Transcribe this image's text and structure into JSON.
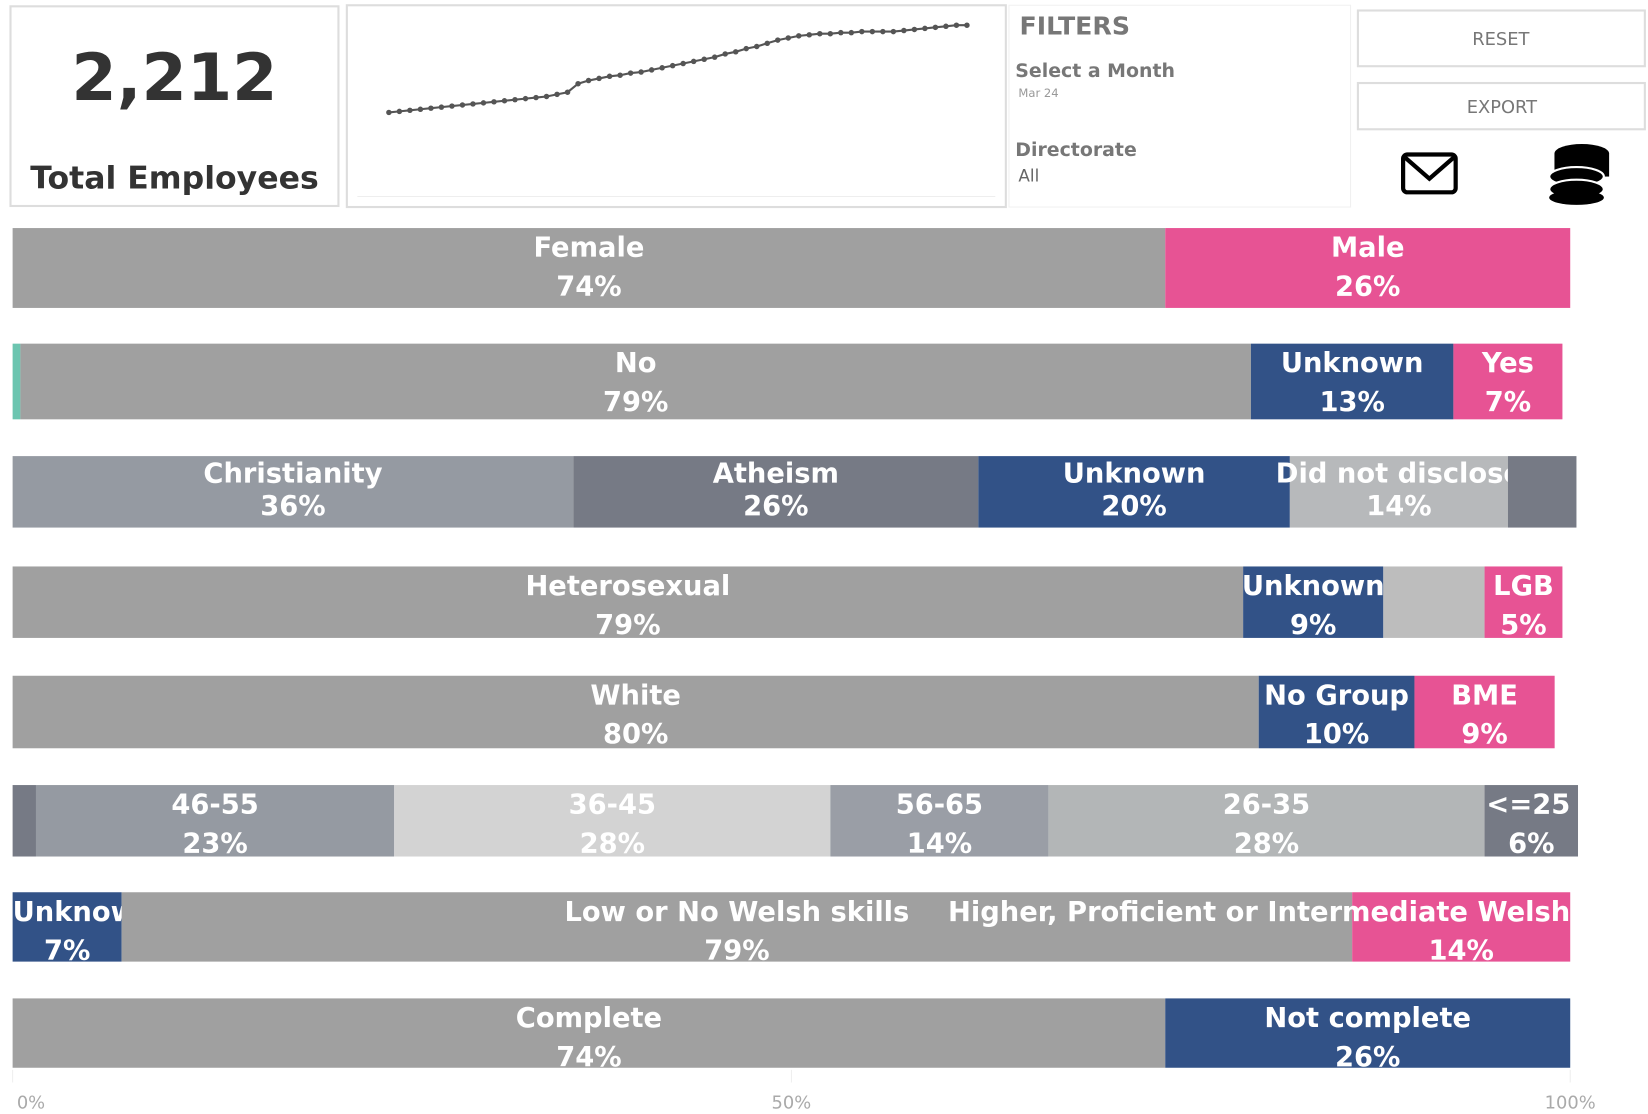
{
  "kpi": {
    "value": "2,212",
    "label": "Total Employees"
  },
  "filters": {
    "title": "FILTERS",
    "month_label": "Select a Month",
    "month_value": "Mar 24",
    "directorate_label": "Directorate",
    "directorate_value": "All"
  },
  "buttons": {
    "reset": "RESET",
    "export": "EXPORT"
  },
  "chart_data": [
    {
      "type": "line",
      "color": "#555555",
      "values": [
        3,
        4,
        5,
        6,
        7,
        8,
        9,
        10,
        11,
        12,
        13,
        14,
        15,
        16,
        17,
        18,
        20,
        22,
        30,
        33,
        35,
        37,
        38,
        40,
        41,
        43,
        45,
        47,
        49,
        51,
        53,
        55,
        58,
        60,
        63,
        65,
        68,
        71,
        73,
        75,
        76,
        77,
        77,
        78,
        78,
        79,
        79,
        79,
        79,
        80,
        81,
        82,
        83,
        84,
        85,
        85
      ]
    },
    {
      "type": "stacked_bar",
      "xlim": [
        0,
        100
      ],
      "xticks": [
        {
          "value": 0,
          "label": "0%"
        },
        {
          "value": 50,
          "label": "50%"
        },
        {
          "value": 100,
          "label": "100%"
        }
      ],
      "rows": [
        {
          "names": [
            "Female",
            "Male"
          ],
          "values": [
            74,
            26
          ],
          "value_labels": [
            "74%",
            "26%"
          ],
          "colors": [
            "#a0a0a0",
            "#e75394"
          ]
        },
        {
          "names": [
            null,
            "No",
            "Unknown",
            "Yes"
          ],
          "values": [
            0.5,
            79,
            13,
            7
          ],
          "value_labels": [
            null,
            "79%",
            "13%",
            "7%"
          ],
          "colors": [
            "#6cc5b0",
            "#a0a0a0",
            "#325287",
            "#e75394"
          ]
        },
        {
          "names": [
            "Christianity",
            "Atheism",
            "Unknown",
            "Did not disclose",
            null
          ],
          "values": [
            36,
            26,
            20,
            14,
            4.4
          ],
          "value_labels": [
            "36%",
            "26%",
            "20%",
            "14%",
            null
          ],
          "colors": [
            "#959aa2",
            "#767a85",
            "#325287",
            "#b7b9bb",
            "#767a85"
          ]
        },
        {
          "names": [
            "Heterosexual",
            "Unknown",
            null,
            "LGB"
          ],
          "values": [
            79,
            9,
            6.5,
            5
          ],
          "value_labels": [
            "79%",
            "9%",
            null,
            "5%"
          ],
          "colors": [
            "#a0a0a0",
            "#325287",
            "#bdbdbd",
            "#e75394"
          ]
        },
        {
          "names": [
            "White",
            "No Group",
            "BME"
          ],
          "values": [
            80,
            10,
            9
          ],
          "value_labels": [
            "80%",
            "10%",
            "9%"
          ],
          "colors": [
            "#a0a0a0",
            "#325287",
            "#e75394"
          ]
        },
        {
          "names": [
            null,
            "46-55",
            "36-45",
            "56-65",
            "26-35",
            "<=25"
          ],
          "values": [
            1.5,
            23,
            28,
            14,
            28,
            6
          ],
          "value_labels": [
            null,
            "23%",
            "28%",
            "14%",
            "28%",
            "6%"
          ],
          "colors": [
            "#767a85",
            "#959aa2",
            "#d3d3d3",
            "#9a9ea6",
            "#b3b6b7",
            "#767a85"
          ]
        },
        {
          "names": [
            "Unknown",
            "Low or No Welsh skills",
            "Higher, Proficient or Intermediate Welsh"
          ],
          "values": [
            7,
            79,
            14
          ],
          "value_labels": [
            "7%",
            "79%",
            "14%"
          ],
          "colors": [
            "#325287",
            "#a0a0a0",
            "#e75394"
          ]
        },
        {
          "names": [
            "Complete",
            "Not complete"
          ],
          "values": [
            74,
            26
          ],
          "value_labels": [
            "74%",
            "26%"
          ],
          "colors": [
            "#a0a0a0",
            "#325287"
          ]
        }
      ]
    }
  ]
}
